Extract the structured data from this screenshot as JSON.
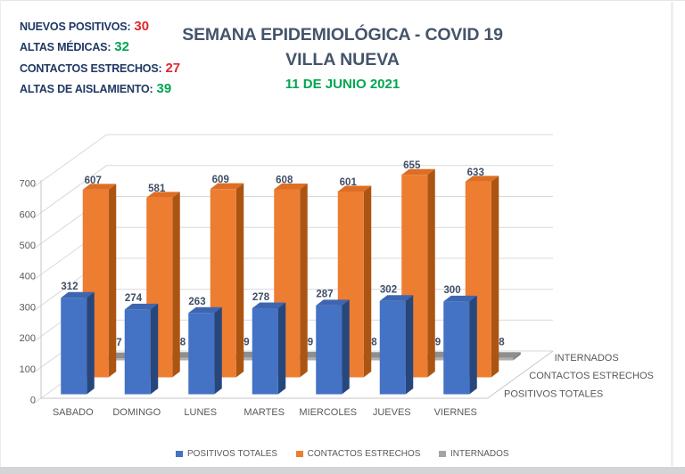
{
  "stats": {
    "items": [
      {
        "label": "NUEVOS POSITIVOS:",
        "value": "30",
        "color": "red"
      },
      {
        "label": "ALTAS MÉDICAS:",
        "value": "32",
        "color": "green"
      },
      {
        "label": "CONTACTOS ESTRECHOS:",
        "value": "27",
        "color": "red"
      },
      {
        "label": "ALTAS DE AISLAMIENTO:",
        "value": "39",
        "color": "green"
      }
    ]
  },
  "title": {
    "line1": "SEMANA EPIDEMIOLÓGICA - COVID 19",
    "line2": "VILLA NUEVA",
    "date": "11 DE JUNIO 2021"
  },
  "chart_data": {
    "type": "bar",
    "variant": "3d-column",
    "categories": [
      "SABADO",
      "DOMINGO",
      "LUNES",
      "MARTES",
      "MIERCOLES",
      "JUEVES",
      "VIERNES"
    ],
    "series": [
      {
        "name": "POSITIVOS TOTALES",
        "values": [
          312,
          274,
          263,
          278,
          287,
          302,
          300
        ],
        "color": "#4472C4",
        "color_top": "#3E66B0",
        "color_side": "#26477D"
      },
      {
        "name": "CONTACTOS ESTRECHOS",
        "values": [
          607,
          581,
          609,
          608,
          601,
          655,
          633
        ],
        "color": "#ED7D31",
        "color_top": "#DE6E24",
        "color_side": "#AC5513"
      },
      {
        "name": "INTERNADOS",
        "values": [
          7,
          8,
          9,
          9,
          8,
          9,
          8
        ],
        "color": "#A5A5A5",
        "color_front": "#AFAFAF",
        "color_top": "#8E8E8E",
        "color_side": "#7F7F7F"
      }
    ],
    "depth_axis_labels": [
      "INTERNADOS",
      "CONTACTOS ESTRECHOS",
      "POSITIVOS TOTALES"
    ],
    "ylim": [
      0,
      700
    ],
    "ytick_step": 100,
    "yticks": [
      "0",
      "100",
      "200",
      "300",
      "400",
      "500",
      "600",
      "700"
    ],
    "grid": true,
    "legend_position": "bottom",
    "text_color_axis": "#595959",
    "text_color_datalabel": "#3F4E66",
    "gridline_color": "#D9D9D9",
    "axisline_color": "#C6C6C6"
  }
}
